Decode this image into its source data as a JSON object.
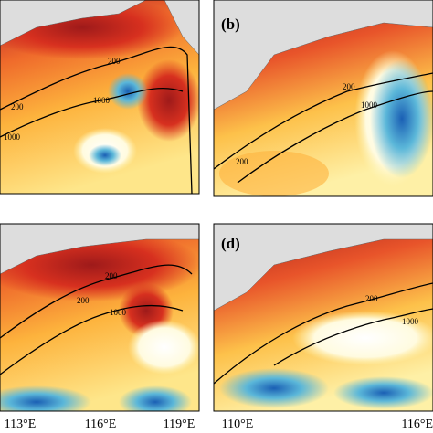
{
  "panels": [
    {
      "contour_labels": [
        "200",
        "1000",
        "1000",
        "200"
      ]
    },
    {
      "label": "(b)",
      "contour_labels": [
        "200",
        "1000",
        "200"
      ]
    },
    {
      "contour_labels": [
        "200",
        "200",
        "1000"
      ]
    },
    {
      "label": "(d)",
      "contour_labels": [
        "200",
        "1000"
      ]
    }
  ],
  "x_axis_labels": [
    "113°E",
    "116°E",
    "119°E",
    "110°E",
    "116°E"
  ]
}
